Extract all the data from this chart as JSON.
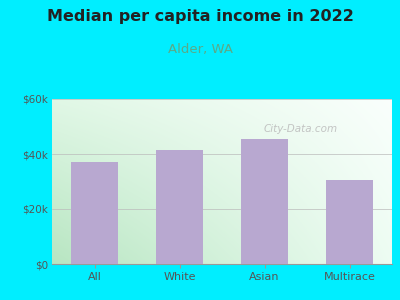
{
  "title": "Median per capita income in 2022",
  "subtitle": "Alder, WA",
  "categories": [
    "All",
    "White",
    "Asian",
    "Multirace"
  ],
  "values": [
    37000,
    41500,
    45500,
    30500
  ],
  "bar_color": "#b8a8d0",
  "ylim": [
    0,
    60000
  ],
  "yticks": [
    0,
    20000,
    40000,
    60000
  ],
  "ytick_labels": [
    "$0",
    "$20k",
    "$40k",
    "$60k"
  ],
  "title_fontsize": 11.5,
  "subtitle_fontsize": 9.5,
  "background_outer": "#00eeff",
  "watermark": "City-Data.com",
  "title_color": "#222222",
  "subtitle_color": "#5aaa88",
  "tick_label_color": "#555555"
}
